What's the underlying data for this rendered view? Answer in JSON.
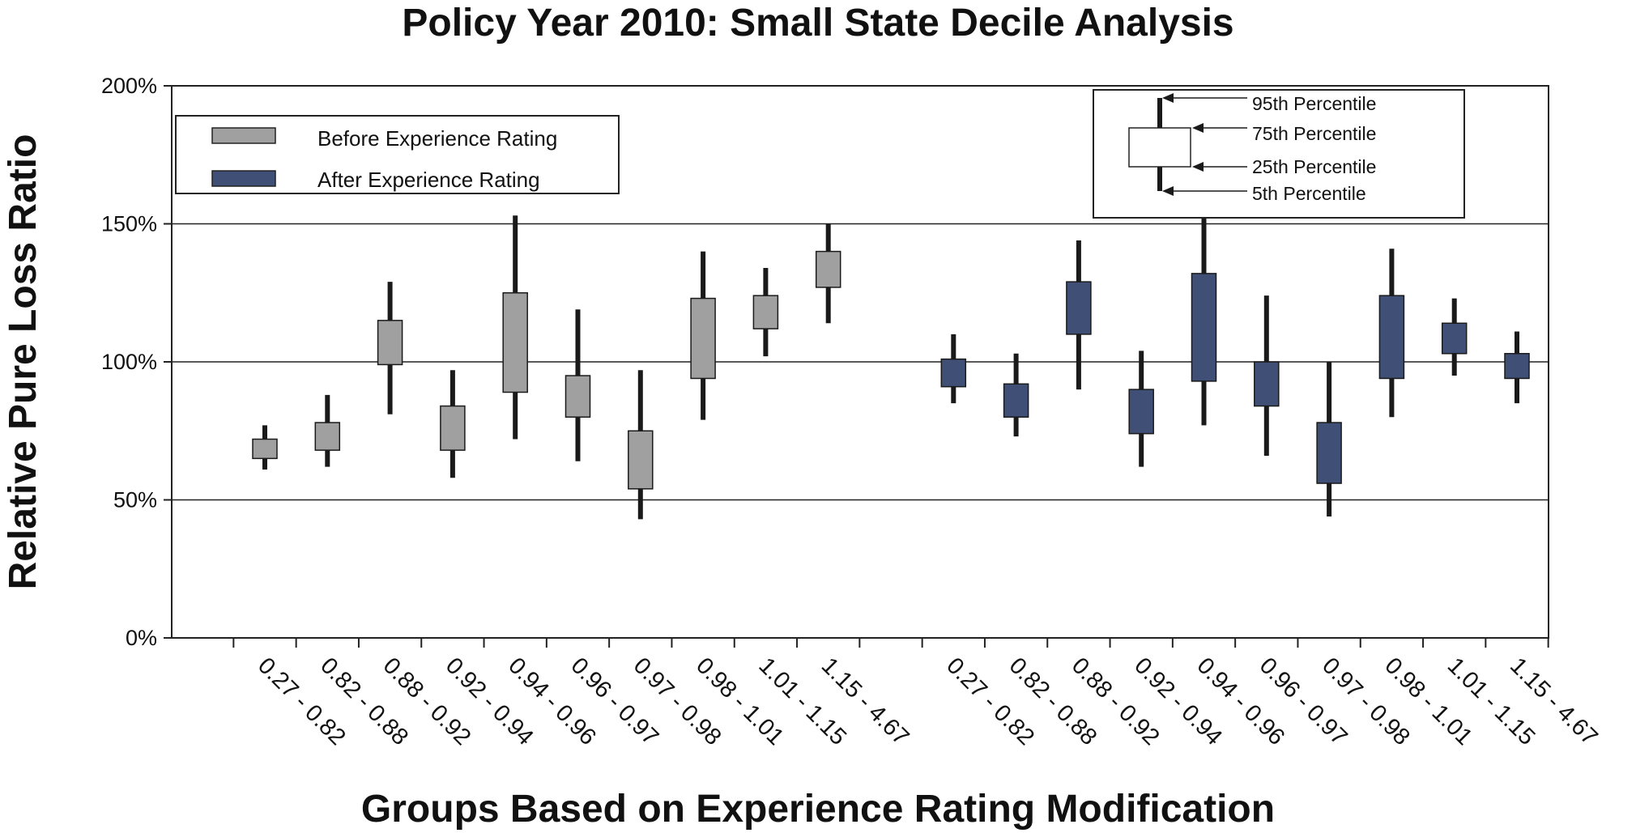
{
  "chart_data": {
    "type": "box",
    "title": "Policy Year 2010: Small State Decile Analysis",
    "xlabel": "Groups Based on Experience Rating Modification",
    "ylabel": "Relative Pure Loss Ratio",
    "ylim": [
      0,
      200
    ],
    "yticks": [
      "0%",
      "50%",
      "100%",
      "150%",
      "200%"
    ],
    "ytick_values": [
      0,
      50,
      100,
      150,
      200
    ],
    "grid": true,
    "legend": [
      {
        "label": "Before Experience Rating",
        "color": "#a0a0a0"
      },
      {
        "label": "After Experience Rating",
        "color": "#3f4f75"
      }
    ],
    "key": {
      "p95": "95th Percentile",
      "p75": "75th Percentile",
      "p25": "25th Percentile",
      "p5": "5th Percentile"
    },
    "series": [
      {
        "name": "Before Experience Rating",
        "color": "#a0a0a0",
        "categories": [
          "0.27 - 0.82",
          "0.82 - 0.88",
          "0.88 - 0.92",
          "0.92 - 0.94",
          "0.94 - 0.96",
          "0.96 - 0.97",
          "0.97 - 0.98",
          "0.98 - 1.01",
          "1.01 - 1.15",
          "1.15 - 4.67"
        ],
        "p5": [
          61,
          62,
          81,
          58,
          72,
          64,
          43,
          79,
          102,
          114
        ],
        "p25": [
          65,
          68,
          99,
          68,
          89,
          80,
          54,
          94,
          112,
          127
        ],
        "p75": [
          72,
          78,
          115,
          84,
          125,
          95,
          75,
          123,
          124,
          140
        ],
        "p95": [
          77,
          88,
          129,
          97,
          153,
          119,
          97,
          140,
          134,
          150
        ]
      },
      {
        "name": "After Experience Rating",
        "color": "#3f4f75",
        "categories": [
          "0.27 - 0.82",
          "0.82 - 0.88",
          "0.88 - 0.92",
          "0.92 - 0.94",
          "0.94 - 0.96",
          "0.96 - 0.97",
          "0.97 - 0.98",
          "0.98 - 1.01",
          "1.01 - 1.15",
          "1.15 - 4.67"
        ],
        "p5": [
          85,
          73,
          90,
          62,
          77,
          66,
          44,
          80,
          95,
          85
        ],
        "p25": [
          91,
          80,
          110,
          74,
          93,
          84,
          56,
          94,
          103,
          94
        ],
        "p75": [
          101,
          92,
          129,
          90,
          132,
          100,
          78,
          124,
          114,
          103
        ],
        "p95": [
          110,
          103,
          144,
          104,
          152,
          124,
          100,
          141,
          123,
          111
        ]
      }
    ]
  }
}
